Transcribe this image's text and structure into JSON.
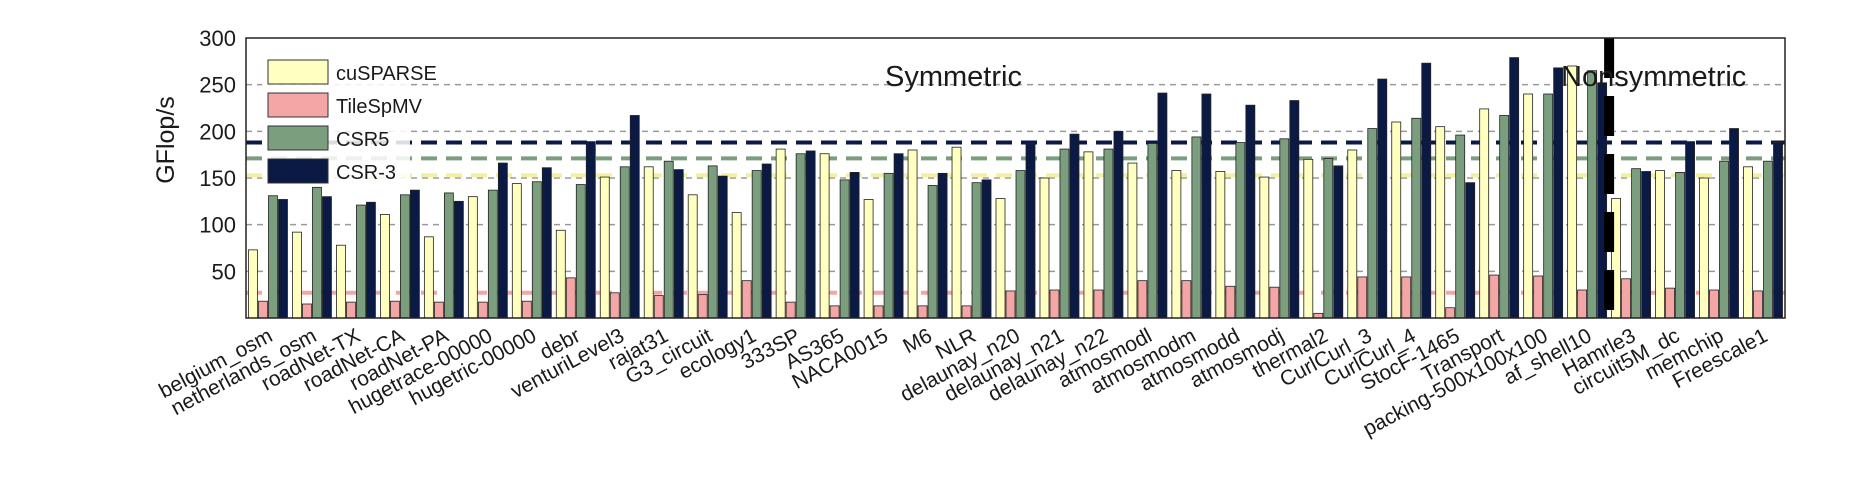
{
  "chart_data": {
    "type": "bar",
    "title": "",
    "xlabel": "",
    "ylabel": "GFlop/s",
    "ylim": [
      0,
      300
    ],
    "yticks": [
      50,
      100,
      150,
      200,
      250,
      300
    ],
    "grid": "horizontal dashed",
    "legend": "top-left",
    "categories": [
      "belgium_osm",
      "netherlands_osm",
      "roadNet-TX",
      "roadNet-CA",
      "roadNet-PA",
      "hugetrace-00000",
      "hugetric-00000",
      "debr",
      "venturiLevel3",
      "rajat31",
      "G3_circuit",
      "ecology1",
      "333SP",
      "AS365",
      "NACA0015",
      "M6",
      "NLR",
      "delaunay_n20",
      "delaunay_n21",
      "delaunay_n22",
      "atmosmodl",
      "atmosmodm",
      "atmosmodd",
      "atmosmodj",
      "thermal2",
      "CurlCurl_3",
      "CurlCurl_4",
      "StocF-1465",
      "Transport",
      "packing-500x100x100",
      "af_shell10",
      "Hamrle3",
      "circuit5M_dc",
      "memchip",
      "Freescale1"
    ],
    "series": [
      {
        "name": "cuSPARSE",
        "color": "#ffffc0",
        "values": [
          73,
          92,
          78,
          111,
          87,
          130,
          144,
          94,
          151,
          162,
          132,
          113,
          181,
          176,
          127,
          180,
          183,
          128,
          150,
          178,
          166,
          158,
          157,
          151,
          170,
          180,
          210,
          205,
          224,
          240,
          270,
          128,
          158,
          150,
          162
        ]
      },
      {
        "name": "TileSpMV",
        "color": "#f4a6a6",
        "values": [
          18,
          15,
          17,
          18,
          17,
          17,
          18,
          43,
          27,
          24,
          25,
          40,
          17,
          13,
          13,
          13,
          13,
          29,
          30,
          30,
          40,
          40,
          34,
          33,
          5,
          44,
          44,
          11,
          46,
          45,
          30,
          42,
          32,
          30,
          29
        ]
      },
      {
        "name": "CSR5",
        "color": "#7a9e7e",
        "values": [
          131,
          140,
          121,
          132,
          134,
          137,
          146,
          143,
          162,
          168,
          163,
          158,
          176,
          148,
          155,
          142,
          145,
          158,
          181,
          181,
          187,
          194,
          188,
          192,
          171,
          203,
          214,
          196,
          217,
          240,
          265,
          160,
          156,
          168,
          168
        ]
      },
      {
        "name": "CSR-3",
        "color": "#0b1a45",
        "values": [
          127,
          130,
          124,
          137,
          125,
          166,
          161,
          189,
          217,
          159,
          152,
          165,
          179,
          156,
          176,
          155,
          148,
          187,
          197,
          200,
          241,
          240,
          228,
          233,
          163,
          256,
          273,
          145,
          279,
          268,
          252,
          157,
          189,
          203,
          188
        ]
      }
    ],
    "reference_lines": [
      {
        "series": "cuSPARSE",
        "value": 153
      },
      {
        "series": "TileSpMV",
        "value": 27
      },
      {
        "series": "CSR5",
        "value": 171
      },
      {
        "series": "CSR-3",
        "value": 188
      }
    ],
    "annotations": [
      {
        "text": "Symmetric",
        "group": "symmetric"
      },
      {
        "text": "Nonsymmetric",
        "group": "nonsymmetric"
      }
    ],
    "divider_after_category": "af_shell10",
    "divider_color": "#000000"
  }
}
